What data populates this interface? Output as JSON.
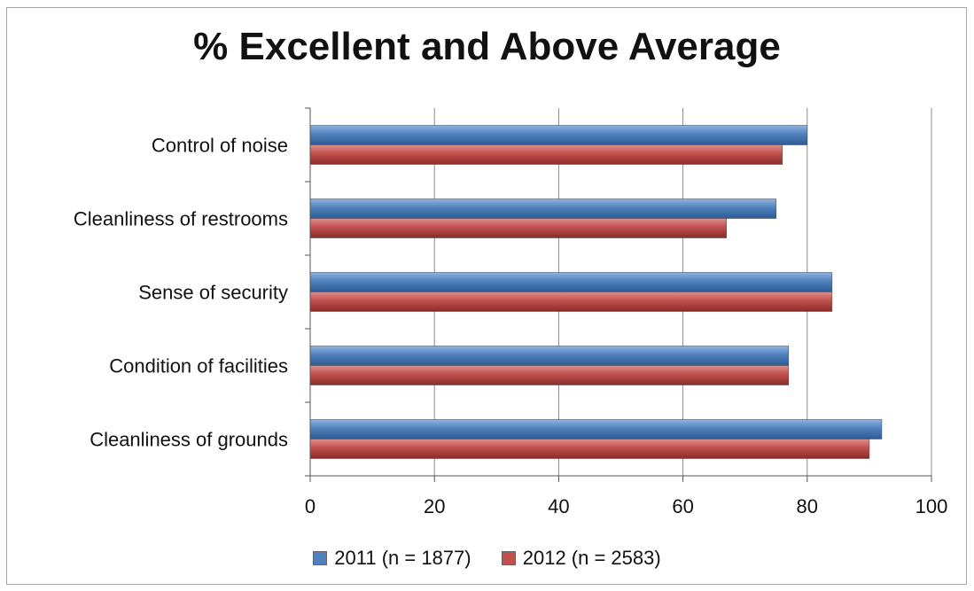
{
  "chart_data": {
    "type": "bar",
    "orientation": "horizontal",
    "title": "% Excellent and Above Average",
    "categories": [
      "Control of noise",
      "Cleanliness of restrooms",
      "Sense of security",
      "Condition of facilities",
      "Cleanliness of grounds"
    ],
    "series": [
      {
        "name": "2011 (n = 1877)",
        "color": "#4f81bd",
        "values": [
          80,
          75,
          84,
          77,
          92
        ]
      },
      {
        "name": "2012 (n = 2583)",
        "color": "#c0504d",
        "values": [
          76,
          67,
          84,
          77,
          90
        ]
      }
    ],
    "xlim": [
      0,
      100
    ],
    "xticks": [
      0,
      20,
      40,
      60,
      80,
      100
    ],
    "xlabel": "",
    "ylabel": "",
    "grid": "vertical",
    "legend": "bottom"
  }
}
